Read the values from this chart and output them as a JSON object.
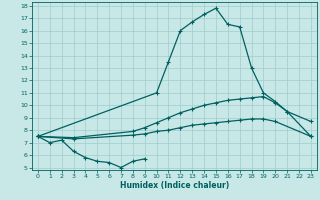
{
  "xlabel": "Humidex (Indice chaleur)",
  "xlim": [
    -0.5,
    23.5
  ],
  "ylim": [
    4.8,
    18.3
  ],
  "xticks": [
    0,
    1,
    2,
    3,
    4,
    5,
    6,
    7,
    8,
    9,
    10,
    11,
    12,
    13,
    14,
    15,
    16,
    17,
    18,
    19,
    20,
    21,
    22,
    23
  ],
  "yticks": [
    5,
    6,
    7,
    8,
    9,
    10,
    11,
    12,
    13,
    14,
    15,
    16,
    17,
    18
  ],
  "bg_color": "#c8e8e8",
  "line_color": "#006060",
  "grid_color": "#a0cccc",
  "lines": [
    {
      "x": [
        0,
        1,
        2,
        3,
        4,
        5,
        6,
        7,
        8,
        9
      ],
      "y": [
        7.5,
        7.0,
        7.2,
        6.3,
        5.8,
        5.5,
        5.4,
        5.0,
        5.5,
        5.7
      ]
    },
    {
      "x": [
        0,
        10,
        11,
        12,
        13,
        14,
        15,
        16,
        17,
        18,
        19,
        20,
        21,
        23
      ],
      "y": [
        7.5,
        11.0,
        13.5,
        16.0,
        16.7,
        17.3,
        17.8,
        16.5,
        16.3,
        13.0,
        11.0,
        10.3,
        9.5,
        8.7
      ]
    },
    {
      "x": [
        0,
        3,
        8,
        9,
        10,
        11,
        12,
        13,
        14,
        15,
        16,
        17,
        18,
        19,
        20,
        21,
        23
      ],
      "y": [
        7.5,
        7.4,
        7.9,
        8.2,
        8.6,
        9.0,
        9.4,
        9.7,
        10.0,
        10.2,
        10.4,
        10.5,
        10.6,
        10.7,
        10.2,
        9.5,
        7.5
      ]
    },
    {
      "x": [
        0,
        3,
        8,
        9,
        10,
        11,
        12,
        13,
        14,
        15,
        16,
        17,
        18,
        19,
        20,
        23
      ],
      "y": [
        7.5,
        7.3,
        7.6,
        7.7,
        7.9,
        8.0,
        8.2,
        8.4,
        8.5,
        8.6,
        8.7,
        8.8,
        8.9,
        8.9,
        8.7,
        7.5
      ]
    }
  ]
}
